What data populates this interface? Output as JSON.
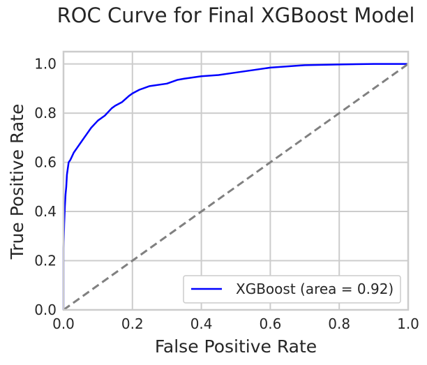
{
  "chart_data": {
    "type": "line",
    "title": "ROC Curve for Final XGBoost Model",
    "xlabel": "False Positive Rate",
    "ylabel": "True Positive Rate",
    "xlim": [
      0.0,
      1.0
    ],
    "ylim": [
      0.0,
      1.05
    ],
    "xticks": [
      "0.0",
      "0.2",
      "0.4",
      "0.6",
      "0.8",
      "1.0"
    ],
    "yticks": [
      "0.0",
      "0.2",
      "0.4",
      "0.6",
      "0.8",
      "1.0"
    ],
    "grid": true,
    "legend_position": "lower-right",
    "series": [
      {
        "name": "XGBoost (area = 0.92)",
        "color": "#0000ff",
        "style": "solid",
        "x": [
          0.0,
          0.0,
          0.002,
          0.004,
          0.006,
          0.008,
          0.01,
          0.015,
          0.02,
          0.03,
          0.04,
          0.05,
          0.06,
          0.07,
          0.08,
          0.09,
          0.1,
          0.12,
          0.14,
          0.15,
          0.17,
          0.19,
          0.2,
          0.22,
          0.25,
          0.3,
          0.33,
          0.35,
          0.4,
          0.45,
          0.5,
          0.55,
          0.6,
          0.65,
          0.7,
          0.8,
          0.9,
          1.0
        ],
        "y": [
          0.0,
          0.25,
          0.35,
          0.42,
          0.47,
          0.5,
          0.55,
          0.6,
          0.61,
          0.64,
          0.66,
          0.68,
          0.7,
          0.72,
          0.74,
          0.755,
          0.77,
          0.79,
          0.82,
          0.83,
          0.845,
          0.87,
          0.88,
          0.895,
          0.91,
          0.92,
          0.935,
          0.94,
          0.95,
          0.955,
          0.965,
          0.975,
          0.985,
          0.99,
          0.995,
          0.998,
          1.0,
          1.0
        ]
      },
      {
        "name": "",
        "color": "#808080",
        "style": "dashed",
        "x": [
          0.0,
          1.0
        ],
        "y": [
          0.0,
          1.0
        ]
      }
    ]
  }
}
